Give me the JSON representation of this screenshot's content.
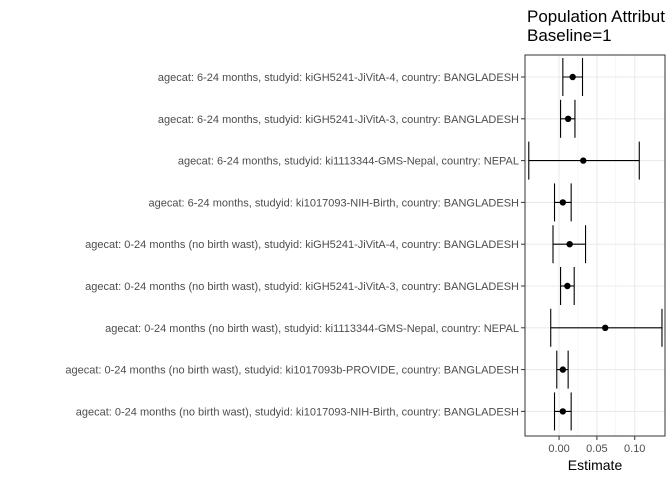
{
  "chart_data": {
    "type": "forest",
    "title": [
      "Population Attribut",
      "Baseline=1"
    ],
    "xlabel": "Estimate",
    "ylabel": "",
    "xlim": [
      -0.045,
      0.14
    ],
    "x_ticks": [
      0.0,
      0.05,
      0.1
    ],
    "x_tick_labels": [
      "0.00",
      "0.05",
      "0.10"
    ],
    "grid": true,
    "categories": [
      "agecat: 6-24 months, studyid: kiGH5241-JiVitA-4, country: BANGLADESH",
      "agecat: 6-24 months, studyid: kiGH5241-JiVitA-3, country: BANGLADESH",
      "agecat: 6-24 months, studyid: ki1113344-GMS-Nepal, country: NEPAL",
      "agecat: 6-24 months, studyid: ki1017093-NIH-Birth, country: BANGLADESH",
      "agecat: 0-24 months (no birth wast), studyid: kiGH5241-JiVitA-4, country: BANGLADESH",
      "agecat: 0-24 months (no birth wast), studyid: kiGH5241-JiVitA-3, country: BANGLADESH",
      "agecat: 0-24 months (no birth wast), studyid: ki1113344-GMS-Nepal, country: NEPAL",
      "agecat: 0-24 months (no birth wast), studyid: ki1017093b-PROVIDE, country: BANGLADESH",
      "agecat: 0-24 months (no birth wast), studyid: ki1017093-NIH-Birth, country: BANGLADESH"
    ],
    "estimates": [
      0.018,
      0.012,
      0.032,
      0.005,
      0.014,
      0.011,
      0.061,
      0.005,
      0.005
    ],
    "lower": [
      0.005,
      0.002,
      -0.04,
      -0.006,
      -0.008,
      0.002,
      -0.011,
      -0.003,
      -0.006
    ],
    "upper": [
      0.031,
      0.021,
      0.106,
      0.016,
      0.035,
      0.02,
      0.136,
      0.012,
      0.016
    ]
  }
}
